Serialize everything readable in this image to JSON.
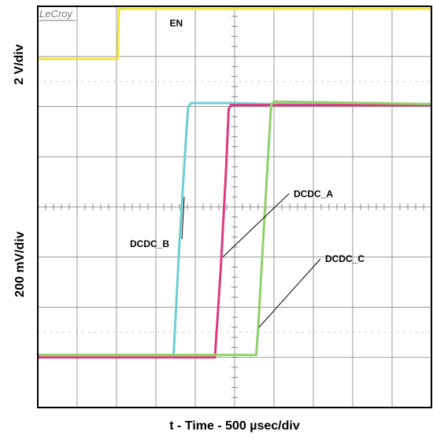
{
  "chart_data": {
    "type": "line",
    "instrument_logo": "LeCroy",
    "xlabel": "t - Time - 500 µsec/div",
    "ylabel_top": "2 V/div",
    "ylabel_bottom": "200 mV/div",
    "grid": true,
    "x_divisions": 10,
    "y_divisions": 8,
    "series": [
      {
        "name": "EN",
        "color": "#f2e33c",
        "points": [
          [
            0,
            6.95
          ],
          [
            2.03,
            6.95
          ],
          [
            2.06,
            7.95
          ],
          [
            10,
            7.95
          ]
        ]
      },
      {
        "name": "DCDC_B",
        "color": "#6ccfd4",
        "points": [
          [
            0,
            1.05
          ],
          [
            3.45,
            1.05
          ],
          [
            3.6,
            3.3
          ],
          [
            3.75,
            5.2
          ],
          [
            3.82,
            6.0
          ],
          [
            3.9,
            6.07
          ],
          [
            5.0,
            6.07
          ],
          [
            6.0,
            6.05
          ],
          [
            10,
            6.05
          ]
        ]
      },
      {
        "name": "DCDC_A",
        "color": "#e0397f",
        "points": [
          [
            0,
            1.0
          ],
          [
            4.5,
            1.0
          ],
          [
            4.65,
            2.8
          ],
          [
            4.78,
            4.7
          ],
          [
            4.85,
            5.95
          ],
          [
            4.9,
            6.03
          ],
          [
            6.0,
            6.03
          ],
          [
            10,
            6.03
          ]
        ]
      },
      {
        "name": "DCDC_C",
        "color": "#8fd16a",
        "points": [
          [
            0,
            1.05
          ],
          [
            5.55,
            1.05
          ],
          [
            5.6,
            1.6
          ],
          [
            5.7,
            3.0
          ],
          [
            5.85,
            5.0
          ],
          [
            5.93,
            6.05
          ],
          [
            6.0,
            6.1
          ],
          [
            10,
            6.05
          ]
        ]
      }
    ],
    "labels": [
      "EN",
      "DCDC_A",
      "DCDC_B",
      "DCDC_C"
    ],
    "annotations": [
      {
        "text": "DCDC_A",
        "series": "DCDC_A",
        "point": [
          4.7,
          3.0
        ],
        "label_at": [
          6.5,
          4.2
        ]
      },
      {
        "text": "DCDC_B",
        "series": "DCDC_B",
        "point": [
          3.72,
          4.2
        ],
        "label_at": [
          2.5,
          3.2
        ]
      },
      {
        "text": "DCDC_C",
        "series": "DCDC_C",
        "point": [
          5.62,
          1.6
        ],
        "label_at": [
          7.3,
          2.9
        ]
      }
    ]
  }
}
